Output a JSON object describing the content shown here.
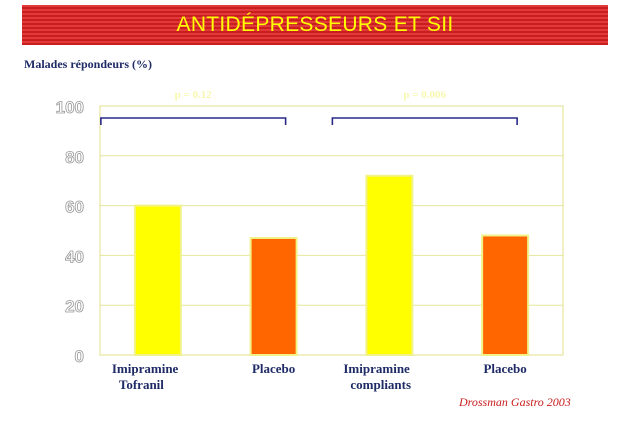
{
  "slide": {
    "title": "ANTIDÉPRESSEURS ET SII",
    "y_caption": "Malades répondeurs (%)",
    "source": "Drossman Gastro 2003",
    "title_bg_color": "#d42b2b",
    "title_text_color": "#ffff00"
  },
  "chart_data": {
    "type": "bar",
    "categories": [
      [
        "Imipramine",
        "Tofranil"
      ],
      [
        "Placebo"
      ],
      [
        "Imipramine",
        "compliants"
      ],
      [
        "Placebo"
      ]
    ],
    "values": [
      60,
      47,
      72,
      48
    ],
    "bar_colors": [
      "#ffff00",
      "#ff6600",
      "#ffff00",
      "#ff6600"
    ],
    "ylim": [
      0,
      100
    ],
    "yticks": [
      0,
      20,
      40,
      60,
      80,
      100
    ],
    "grid": true,
    "annotations": [
      {
        "text": "p = 0.12",
        "from_category": 0,
        "to_category": 1
      },
      {
        "text": "p = 0.006",
        "from_category": 2,
        "to_category": 3
      }
    ]
  }
}
